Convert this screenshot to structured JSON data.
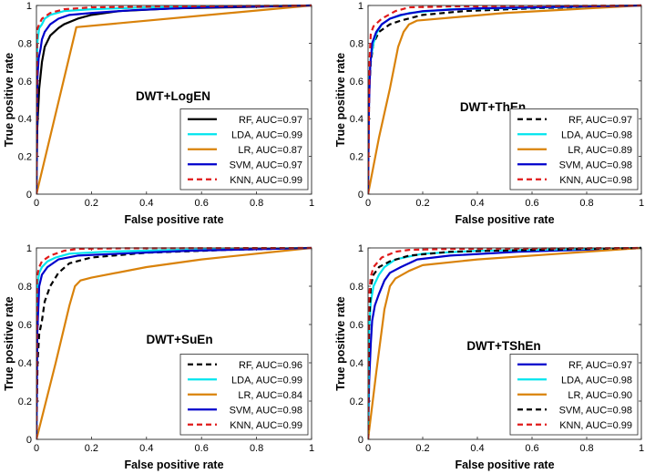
{
  "figure": {
    "name": "ROC curves, 2x2 panels"
  },
  "chart_data": [
    {
      "type": "line",
      "title": "DWT+LogEN",
      "xlabel": "False positive rate",
      "ylabel": "True positive rate",
      "xlim": [
        0,
        1
      ],
      "ylim": [
        0,
        1
      ],
      "xticks": [
        "0",
        "0.2",
        "0.4",
        "0.6",
        "0.8",
        "1"
      ],
      "yticks": [
        "0",
        "0.2",
        "0.4",
        "0.6",
        "0.8",
        "1"
      ],
      "legend_position": "bottom-right",
      "series": [
        {
          "name": "RF",
          "label": "RF, AUC=0.97",
          "color": "#000000",
          "dash": "solid",
          "points": [
            [
              0,
              0
            ],
            [
              0.003,
              0.35
            ],
            [
              0.01,
              0.56
            ],
            [
              0.02,
              0.7
            ],
            [
              0.03,
              0.78
            ],
            [
              0.05,
              0.84
            ],
            [
              0.08,
              0.88
            ],
            [
              0.1,
              0.9
            ],
            [
              0.15,
              0.93
            ],
            [
              0.2,
              0.95
            ],
            [
              0.3,
              0.97
            ],
            [
              0.5,
              0.985
            ],
            [
              0.7,
              0.99
            ],
            [
              1,
              1
            ]
          ]
        },
        {
          "name": "LDA",
          "label": "LDA, AUC=0.99",
          "color": "#00e5ee",
          "dash": "solid",
          "points": [
            [
              0,
              0
            ],
            [
              0.003,
              0.8
            ],
            [
              0.01,
              0.88
            ],
            [
              0.02,
              0.9
            ],
            [
              0.03,
              0.93
            ],
            [
              0.05,
              0.95
            ],
            [
              0.1,
              0.97
            ],
            [
              0.2,
              0.98
            ],
            [
              0.4,
              0.99
            ],
            [
              1,
              1
            ]
          ]
        },
        {
          "name": "LR",
          "label": "LR, AUC=0.87",
          "color": "#d9820a",
          "dash": "solid",
          "points": [
            [
              0,
              0
            ],
            [
              0.145,
              0.885
            ],
            [
              1,
              1
            ]
          ]
        },
        {
          "name": "SVM",
          "label": "SVM, AUC=0.97",
          "color": "#0000cc",
          "dash": "solid",
          "points": [
            [
              0,
              0
            ],
            [
              0.003,
              0.6
            ],
            [
              0.008,
              0.72
            ],
            [
              0.015,
              0.77
            ],
            [
              0.02,
              0.82
            ],
            [
              0.03,
              0.86
            ],
            [
              0.05,
              0.9
            ],
            [
              0.08,
              0.93
            ],
            [
              0.12,
              0.95
            ],
            [
              0.2,
              0.96
            ],
            [
              0.35,
              0.975
            ],
            [
              0.6,
              0.99
            ],
            [
              1,
              1
            ]
          ]
        },
        {
          "name": "KNN",
          "label": "KNN, AUC=0.99",
          "color": "#e01a1a",
          "dash": "dashed",
          "points": [
            [
              0,
              0
            ],
            [
              0.002,
              0.87
            ],
            [
              0.01,
              0.9
            ],
            [
              0.02,
              0.93
            ],
            [
              0.05,
              0.96
            ],
            [
              0.1,
              0.98
            ],
            [
              0.2,
              0.99
            ],
            [
              0.5,
              0.995
            ],
            [
              1,
              1
            ]
          ]
        }
      ]
    },
    {
      "type": "line",
      "title": "DWT+ThEn",
      "xlabel": "False positive rate",
      "ylabel": "True positive rate",
      "xlim": [
        0,
        1
      ],
      "ylim": [
        0,
        1
      ],
      "xticks": [
        "0",
        "0.2",
        "0.4",
        "0.6",
        "0.8",
        "1"
      ],
      "yticks": [
        "0",
        "0.2",
        "0.4",
        "0.6",
        "0.8",
        "1"
      ],
      "legend_position": "bottom-right",
      "series": [
        {
          "name": "RF",
          "label": "RF, AUC=0.97",
          "color": "#000000",
          "dash": "dashed",
          "points": [
            [
              0,
              0
            ],
            [
              0.004,
              0.55
            ],
            [
              0.01,
              0.7
            ],
            [
              0.02,
              0.8
            ],
            [
              0.04,
              0.86
            ],
            [
              0.08,
              0.9
            ],
            [
              0.12,
              0.92
            ],
            [
              0.2,
              0.95
            ],
            [
              0.35,
              0.97
            ],
            [
              0.6,
              0.985
            ],
            [
              1,
              1
            ]
          ]
        },
        {
          "name": "LDA",
          "label": "LDA, AUC=0.98",
          "color": "#00e5ee",
          "dash": "solid",
          "points": [
            [
              0,
              0
            ],
            [
              0.004,
              0.6
            ],
            [
              0.01,
              0.72
            ],
            [
              0.02,
              0.8
            ],
            [
              0.03,
              0.85
            ],
            [
              0.05,
              0.9
            ],
            [
              0.08,
              0.93
            ],
            [
              0.15,
              0.96
            ],
            [
              0.3,
              0.98
            ],
            [
              1,
              1
            ]
          ]
        },
        {
          "name": "LR",
          "label": "LR, AUC=0.89",
          "color": "#d9820a",
          "dash": "solid",
          "points": [
            [
              0,
              0
            ],
            [
              0.04,
              0.3
            ],
            [
              0.08,
              0.56
            ],
            [
              0.11,
              0.78
            ],
            [
              0.13,
              0.86
            ],
            [
              0.15,
              0.9
            ],
            [
              0.18,
              0.92
            ],
            [
              0.5,
              0.96
            ],
            [
              1,
              1
            ]
          ]
        },
        {
          "name": "SVM",
          "label": "SVM, AUC=0.98",
          "color": "#0000cc",
          "dash": "solid",
          "points": [
            [
              0,
              0
            ],
            [
              0.003,
              0.45
            ],
            [
              0.008,
              0.68
            ],
            [
              0.015,
              0.8
            ],
            [
              0.03,
              0.86
            ],
            [
              0.05,
              0.9
            ],
            [
              0.08,
              0.93
            ],
            [
              0.12,
              0.95
            ],
            [
              0.2,
              0.97
            ],
            [
              0.4,
              0.985
            ],
            [
              1,
              1
            ]
          ]
        },
        {
          "name": "KNN",
          "label": "KNN, AUC=0.98",
          "color": "#e01a1a",
          "dash": "dashed",
          "points": [
            [
              0,
              0
            ],
            [
              0.002,
              0.25
            ],
            [
              0.005,
              0.7
            ],
            [
              0.01,
              0.85
            ],
            [
              0.02,
              0.89
            ],
            [
              0.05,
              0.93
            ],
            [
              0.1,
              0.97
            ],
            [
              0.15,
              0.99
            ],
            [
              0.3,
              0.995
            ],
            [
              1,
              1
            ]
          ]
        }
      ]
    },
    {
      "type": "line",
      "title": "DWT+SuEn",
      "xlabel": "False positive rate",
      "ylabel": "True positive rate",
      "xlim": [
        0,
        1
      ],
      "ylim": [
        0,
        1
      ],
      "xticks": [
        "0",
        "0.2",
        "0.4",
        "0.6",
        "0.8",
        "1"
      ],
      "yticks": [
        "0",
        "0.2",
        "0.4",
        "0.6",
        "0.8",
        "1"
      ],
      "legend_position": "bottom-right",
      "series": [
        {
          "name": "RF",
          "label": "RF, AUC=0.96",
          "color": "#000000",
          "dash": "dashed",
          "points": [
            [
              0,
              0
            ],
            [
              0.004,
              0.4
            ],
            [
              0.01,
              0.55
            ],
            [
              0.02,
              0.62
            ],
            [
              0.03,
              0.72
            ],
            [
              0.05,
              0.8
            ],
            [
              0.08,
              0.87
            ],
            [
              0.12,
              0.92
            ],
            [
              0.2,
              0.95
            ],
            [
              0.4,
              0.975
            ],
            [
              0.7,
              0.99
            ],
            [
              1,
              1
            ]
          ]
        },
        {
          "name": "LDA",
          "label": "LDA, AUC=0.99",
          "color": "#00e5ee",
          "dash": "solid",
          "points": [
            [
              0,
              0
            ],
            [
              0.003,
              0.8
            ],
            [
              0.01,
              0.87
            ],
            [
              0.02,
              0.9
            ],
            [
              0.04,
              0.93
            ],
            [
              0.07,
              0.95
            ],
            [
              0.12,
              0.97
            ],
            [
              0.25,
              0.98
            ],
            [
              0.5,
              0.99
            ],
            [
              1,
              1
            ]
          ]
        },
        {
          "name": "LR",
          "label": "LR, AUC=0.84",
          "color": "#d9820a",
          "dash": "solid",
          "points": [
            [
              0,
              0
            ],
            [
              0.07,
              0.4
            ],
            [
              0.12,
              0.7
            ],
            [
              0.14,
              0.8
            ],
            [
              0.16,
              0.83
            ],
            [
              0.2,
              0.845
            ],
            [
              0.4,
              0.9
            ],
            [
              0.6,
              0.94
            ],
            [
              0.8,
              0.97
            ],
            [
              1,
              1
            ]
          ]
        },
        {
          "name": "SVM",
          "label": "SVM, AUC=0.98",
          "color": "#0000cc",
          "dash": "solid",
          "points": [
            [
              0,
              0
            ],
            [
              0.003,
              0.55
            ],
            [
              0.01,
              0.8
            ],
            [
              0.02,
              0.86
            ],
            [
              0.04,
              0.9
            ],
            [
              0.08,
              0.94
            ],
            [
              0.15,
              0.96
            ],
            [
              0.3,
              0.97
            ],
            [
              0.55,
              0.985
            ],
            [
              1,
              1
            ]
          ]
        },
        {
          "name": "KNN",
          "label": "KNN, AUC=0.99",
          "color": "#e01a1a",
          "dash": "dashed",
          "points": [
            [
              0,
              0
            ],
            [
              0.002,
              0.85
            ],
            [
              0.01,
              0.9
            ],
            [
              0.02,
              0.93
            ],
            [
              0.05,
              0.96
            ],
            [
              0.1,
              0.985
            ],
            [
              0.15,
              0.995
            ],
            [
              0.3,
              0.998
            ],
            [
              1,
              1
            ]
          ]
        }
      ]
    },
    {
      "type": "line",
      "title": "DWT+TShEn",
      "xlabel": "False positive rate",
      "ylabel": "True positive rate",
      "xlim": [
        0,
        1
      ],
      "ylim": [
        0,
        1
      ],
      "xticks": [
        "0",
        "0.2",
        "0.4",
        "0.6",
        "0.8",
        "1"
      ],
      "yticks": [
        "0",
        "0.2",
        "0.4",
        "0.6",
        "0.8",
        "1"
      ],
      "legend_position": "bottom-right",
      "series": [
        {
          "name": "RF",
          "label": "RF, AUC=0.97",
          "color": "#0000cc",
          "dash": "solid",
          "points": [
            [
              0,
              0
            ],
            [
              0.004,
              0.3
            ],
            [
              0.01,
              0.5
            ],
            [
              0.015,
              0.62
            ],
            [
              0.025,
              0.7
            ],
            [
              0.04,
              0.76
            ],
            [
              0.06,
              0.83
            ],
            [
              0.08,
              0.87
            ],
            [
              0.12,
              0.9
            ],
            [
              0.18,
              0.94
            ],
            [
              0.3,
              0.96
            ],
            [
              0.55,
              0.98
            ],
            [
              1,
              1
            ]
          ]
        },
        {
          "name": "LDA",
          "label": "LDA, AUC=0.98",
          "color": "#00e5ee",
          "dash": "solid",
          "points": [
            [
              0,
              0
            ],
            [
              0.003,
              0.55
            ],
            [
              0.01,
              0.72
            ],
            [
              0.02,
              0.8
            ],
            [
              0.04,
              0.86
            ],
            [
              0.06,
              0.9
            ],
            [
              0.1,
              0.94
            ],
            [
              0.2,
              0.97
            ],
            [
              0.4,
              0.985
            ],
            [
              1,
              1
            ]
          ]
        },
        {
          "name": "LR",
          "label": "LR, AUC=0.90",
          "color": "#d9820a",
          "dash": "solid",
          "points": [
            [
              0,
              0
            ],
            [
              0.03,
              0.35
            ],
            [
              0.06,
              0.68
            ],
            [
              0.08,
              0.8
            ],
            [
              0.1,
              0.84
            ],
            [
              0.15,
              0.88
            ],
            [
              0.2,
              0.91
            ],
            [
              0.4,
              0.94
            ],
            [
              0.7,
              0.97
            ],
            [
              1,
              1
            ]
          ]
        },
        {
          "name": "SVM",
          "label": "SVM, AUC=0.98",
          "color": "#000000",
          "dash": "dashed",
          "points": [
            [
              0,
              0
            ],
            [
              0.004,
              0.6
            ],
            [
              0.01,
              0.8
            ],
            [
              0.02,
              0.86
            ],
            [
              0.04,
              0.9
            ],
            [
              0.08,
              0.93
            ],
            [
              0.15,
              0.96
            ],
            [
              0.3,
              0.98
            ],
            [
              0.6,
              0.99
            ],
            [
              1,
              1
            ]
          ]
        },
        {
          "name": "KNN",
          "label": "KNN, AUC=0.99",
          "color": "#e01a1a",
          "dash": "dashed",
          "points": [
            [
              0,
              0
            ],
            [
              0.002,
              0.72
            ],
            [
              0.01,
              0.85
            ],
            [
              0.02,
              0.9
            ],
            [
              0.05,
              0.95
            ],
            [
              0.1,
              0.98
            ],
            [
              0.15,
              0.99
            ],
            [
              0.3,
              0.995
            ],
            [
              1,
              1
            ]
          ]
        }
      ]
    }
  ]
}
